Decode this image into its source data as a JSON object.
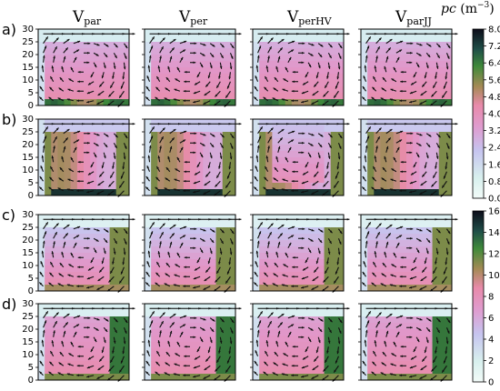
{
  "columns": [
    {
      "base": "V",
      "sub": "par"
    },
    {
      "base": "V",
      "sub": "per"
    },
    {
      "base": "V",
      "sub": "perHV"
    },
    {
      "base": "V",
      "sub": "parJJ"
    }
  ],
  "rows": [
    "a)",
    "b)",
    "c)",
    "d)"
  ],
  "colorbar_label": {
    "symbol": "pc",
    "unit": "(m",
    "exp": "−3",
    "close": ")"
  },
  "palette": {
    "low": "#e0f7f3",
    "mid_low": "#c7c3ee",
    "mid": "#e58bb8",
    "mid_high": "#3f8a3a",
    "high": "#0d0d1a",
    "arrow": "#111111"
  },
  "chart_data": [
    {
      "type": "heatmap",
      "title": "",
      "panels": [
        "Vpar",
        "Vper",
        "VperHV",
        "VparJJ"
      ],
      "row_labels": [
        "a)",
        "b)"
      ],
      "y_ticks": [
        "0",
        "5",
        "10",
        "15",
        "20",
        "25",
        "30"
      ],
      "ylim": [
        0,
        30
      ],
      "colorbar": {
        "label": "pc (m−3)",
        "range": [
          0.0,
          8.0
        ],
        "ticks": [
          "0.0",
          "0.8",
          "1.6",
          "2.4",
          "3.2",
          "4.0",
          "4.8",
          "5.6",
          "6.4",
          "7.2",
          "8.0"
        ]
      }
    },
    {
      "type": "heatmap",
      "title": "",
      "panels": [
        "Vpar",
        "Vper",
        "VperHV",
        "VparJJ"
      ],
      "row_labels": [
        "c)",
        "d)"
      ],
      "y_ticks": [
        "0",
        "5",
        "10",
        "15",
        "20",
        "25",
        "30"
      ],
      "ylim": [
        0,
        30
      ],
      "colorbar": {
        "label": "pc (m−3)",
        "range": [
          0,
          16
        ],
        "ticks": [
          "0",
          "2",
          "4",
          "6",
          "8",
          "10",
          "12",
          "14",
          "16"
        ]
      }
    }
  ]
}
